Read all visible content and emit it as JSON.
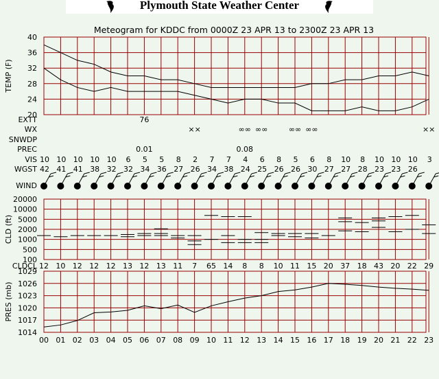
{
  "banner": {
    "title": "Plymouth State Weather Center",
    "logo_icon": "hurricane-icon"
  },
  "chart_data": {
    "type": "meteogram",
    "title": "Meteogram for KDDC from 0000Z 23 APR 13 to 2300Z 23 APR 13",
    "hours": [
      "00",
      "01",
      "02",
      "03",
      "04",
      "05",
      "06",
      "07",
      "08",
      "09",
      "10",
      "11",
      "12",
      "13",
      "14",
      "15",
      "16",
      "17",
      "18",
      "19",
      "20",
      "21",
      "22",
      "23"
    ],
    "temperature": {
      "ylabel": "TEMP (F)",
      "ylim": [
        20,
        40
      ],
      "ticks": [
        20,
        24,
        28,
        32,
        36,
        40
      ],
      "series": [
        {
          "values": [
            38,
            36,
            34,
            33,
            31,
            30,
            30,
            29,
            29,
            28,
            27,
            27,
            27,
            27,
            27,
            27,
            28,
            28,
            29,
            29,
            30,
            30,
            31,
            30
          ]
        },
        {
          "values": [
            32,
            29,
            27,
            26,
            27,
            26,
            26,
            26,
            26,
            25,
            24,
            23,
            24,
            24,
            23,
            23,
            21,
            21,
            21,
            22,
            21,
            21,
            22,
            24
          ]
        }
      ]
    },
    "rows": {
      "extt": {
        "label": "EXTT",
        "entries": [
          {
            "hour": 6,
            "text": "76"
          }
        ]
      },
      "wx": {
        "label": "WX",
        "entries": [
          {
            "hour": 9,
            "text": "××"
          },
          {
            "hour": 12,
            "text": "∞∞"
          },
          {
            "hour": 13,
            "text": "∞∞"
          },
          {
            "hour": 15,
            "text": "∞∞"
          },
          {
            "hour": 16,
            "text": "∞∞"
          },
          {
            "hour": 23,
            "text": "××"
          }
        ]
      },
      "snwdp": {
        "label": "SNWDP",
        "entries": []
      },
      "prec": {
        "label": "PREC",
        "entries": [
          {
            "hour": 6,
            "text": "0.01"
          },
          {
            "hour": 12,
            "text": "0.08"
          }
        ]
      },
      "vis": {
        "label": "VIS",
        "values": [
          "10",
          "10",
          "10",
          "10",
          "10",
          "6",
          "5",
          "5",
          "8",
          "2",
          "7",
          "7",
          "4",
          "6",
          "8",
          "5",
          "6",
          "8",
          "10",
          "8",
          "10",
          "10",
          "10",
          "3"
        ]
      },
      "wgst": {
        "label": "WGST",
        "values": [
          "42",
          "41",
          "41",
          "38",
          "32",
          "32",
          "34",
          "36",
          "27",
          "26",
          "34",
          "38",
          "24",
          "25",
          "26",
          "26",
          "30",
          "27",
          "27",
          "28",
          "23",
          "23",
          "26",
          ""
        ]
      },
      "wind": {
        "label": "WIND"
      }
    },
    "cloud": {
      "ylabel": "CLD (ft)",
      "ticks": [
        "100",
        "500",
        "1000",
        "2000",
        "5000",
        "10000",
        "20000"
      ],
      "layers": [
        {
          "hour": 0,
          "levels": [
            1300
          ]
        },
        {
          "hour": 1,
          "levels": [
            1200
          ]
        },
        {
          "hour": 2,
          "levels": [
            1300
          ]
        },
        {
          "hour": 3,
          "levels": [
            1300
          ]
        },
        {
          "hour": 4,
          "levels": [
            1300
          ]
        },
        {
          "hour": 5,
          "levels": [
            1400,
            1200
          ]
        },
        {
          "hour": 6,
          "levels": [
            1500,
            1300
          ]
        },
        {
          "hour": 7,
          "levels": [
            2100,
            1500,
            1300
          ]
        },
        {
          "hour": 8,
          "levels": [
            1300,
            1100
          ]
        },
        {
          "hour": 9,
          "levels": [
            1300,
            900,
            700
          ]
        },
        {
          "hour": 10,
          "levels": [
            6500,
            1000
          ]
        },
        {
          "hour": 11,
          "levels": [
            6000,
            1300,
            800
          ]
        },
        {
          "hour": 12,
          "levels": [
            6000,
            1000,
            800
          ]
        },
        {
          "hour": 13,
          "levels": [
            1600,
            1000,
            800
          ]
        },
        {
          "hour": 14,
          "levels": [
            1500,
            1300
          ]
        },
        {
          "hour": 15,
          "levels": [
            1500,
            1200
          ]
        },
        {
          "hour": 16,
          "levels": [
            1500,
            1100
          ]
        },
        {
          "hour": 17,
          "levels": [
            1300
          ]
        },
        {
          "hour": 18,
          "levels": [
            5500,
            4000,
            1800
          ]
        },
        {
          "hour": 19,
          "levels": [
            3700,
            1700
          ]
        },
        {
          "hour": 20,
          "levels": [
            5500,
            4300,
            2400
          ]
        },
        {
          "hour": 21,
          "levels": [
            6000,
            1700
          ]
        },
        {
          "hour": 22,
          "levels": [
            6500,
            2000
          ]
        },
        {
          "hour": 23,
          "levels": [
            3000,
            1500
          ]
        }
      ]
    },
    "cldcl": {
      "label": "CLDCL",
      "values": [
        "12",
        "10",
        "12",
        "12",
        "12",
        "13",
        "12",
        "13",
        "11",
        "7",
        "65",
        "14",
        "8",
        "8",
        "10",
        "11",
        "15",
        "20",
        "37",
        "18",
        "43",
        "20",
        "22",
        "29"
      ]
    },
    "pressure": {
      "ylabel": "PRES (mb)",
      "ylim": [
        1014,
        1029
      ],
      "ticks": [
        1014,
        1017,
        1020,
        1023,
        1026,
        1029
      ],
      "values": [
        1015.3,
        1015.8,
        1016.9,
        1018.8,
        1019.0,
        1019.4,
        1020.5,
        1019.8,
        1020.7,
        1018.9,
        1020.5,
        1021.5,
        1022.4,
        1023.0,
        1024.0,
        1024.4,
        1025.1,
        1026.0,
        1025.8,
        1025.5,
        1025.1,
        1024.8,
        1024.6,
        1024.3
      ]
    },
    "colors": {
      "grid": "#990000",
      "line": "#000000",
      "background": "#eef6ee"
    }
  }
}
